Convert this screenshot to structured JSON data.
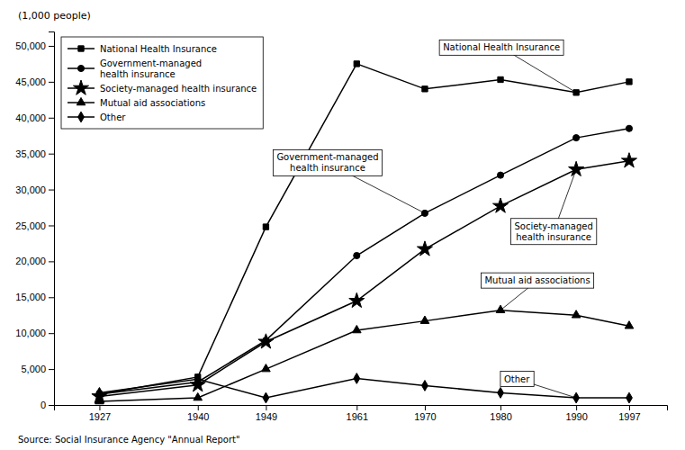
{
  "chart_data": {
    "type": "line",
    "y_label": "(1,000 people)",
    "source": "Source:  Social Insurance Agency \"Annual Report\"",
    "x": [
      1927,
      1940,
      1949,
      1961,
      1970,
      1980,
      1990,
      1997
    ],
    "xlim": [
      1921,
      2002
    ],
    "xticks": [
      1927,
      1940,
      1949,
      1961,
      1970,
      1980,
      1990,
      1997
    ],
    "ylim": [
      0,
      52000
    ],
    "yticks": [
      0,
      {
        "value": 5000,
        "label": "5,000"
      },
      {
        "value": 10000,
        "label": "10,000"
      },
      {
        "value": 15000,
        "label": "15,000"
      },
      {
        "value": 20000,
        "label": "20,000"
      },
      {
        "value": 25000,
        "label": "25,000"
      },
      {
        "value": 30000,
        "label": "30,000"
      },
      {
        "value": 35000,
        "label": "35,000"
      },
      {
        "value": 40000,
        "label": "40,000"
      },
      {
        "value": 45000,
        "label": "45,000"
      },
      {
        "value": 50000,
        "label": "50,000"
      }
    ],
    "grid": false,
    "legend": "upper left",
    "series": [
      {
        "name": "National Health Insurance",
        "color": "#000000",
        "marker": "square",
        "values": [
          1500,
          3900,
          24800,
          47500,
          44000,
          45300,
          43500,
          45000
        ]
      },
      {
        "name": "Government-managed\nhealth insurance",
        "color": "#000000",
        "marker": "circle",
        "values": [
          1500,
          3200,
          9000,
          20800,
          26700,
          32000,
          37200,
          38500
        ]
      },
      {
        "name": "Society-managed health insurance",
        "color": "#000000",
        "marker": "star",
        "values": [
          1200,
          2800,
          8800,
          14500,
          21700,
          27700,
          32800,
          34000
        ]
      },
      {
        "name": "Mutual aid associations",
        "color": "#000000",
        "marker": "triangle",
        "values": [
          500,
          1000,
          5000,
          10400,
          11700,
          13200,
          12500,
          11000
        ]
      },
      {
        "name": "Other",
        "color": "#000000",
        "marker": "diamond",
        "values": [
          1700,
          3600,
          1000,
          3700,
          2700,
          1700,
          1000,
          1000
        ]
      }
    ],
    "annotations": [
      {
        "text": "National Health Insurance",
        "x": 1990,
        "y": 43500
      },
      {
        "text": "Government-managed\nhealth insurance",
        "x": 1970,
        "y": 26700
      },
      {
        "text": "Society-managed\nhealth insurance",
        "x": 1990,
        "y": 32800
      },
      {
        "text": "Mutual aid associations",
        "x": 1980,
        "y": 13200
      },
      {
        "text": "Other",
        "x": 1990,
        "y": 1000
      }
    ]
  }
}
